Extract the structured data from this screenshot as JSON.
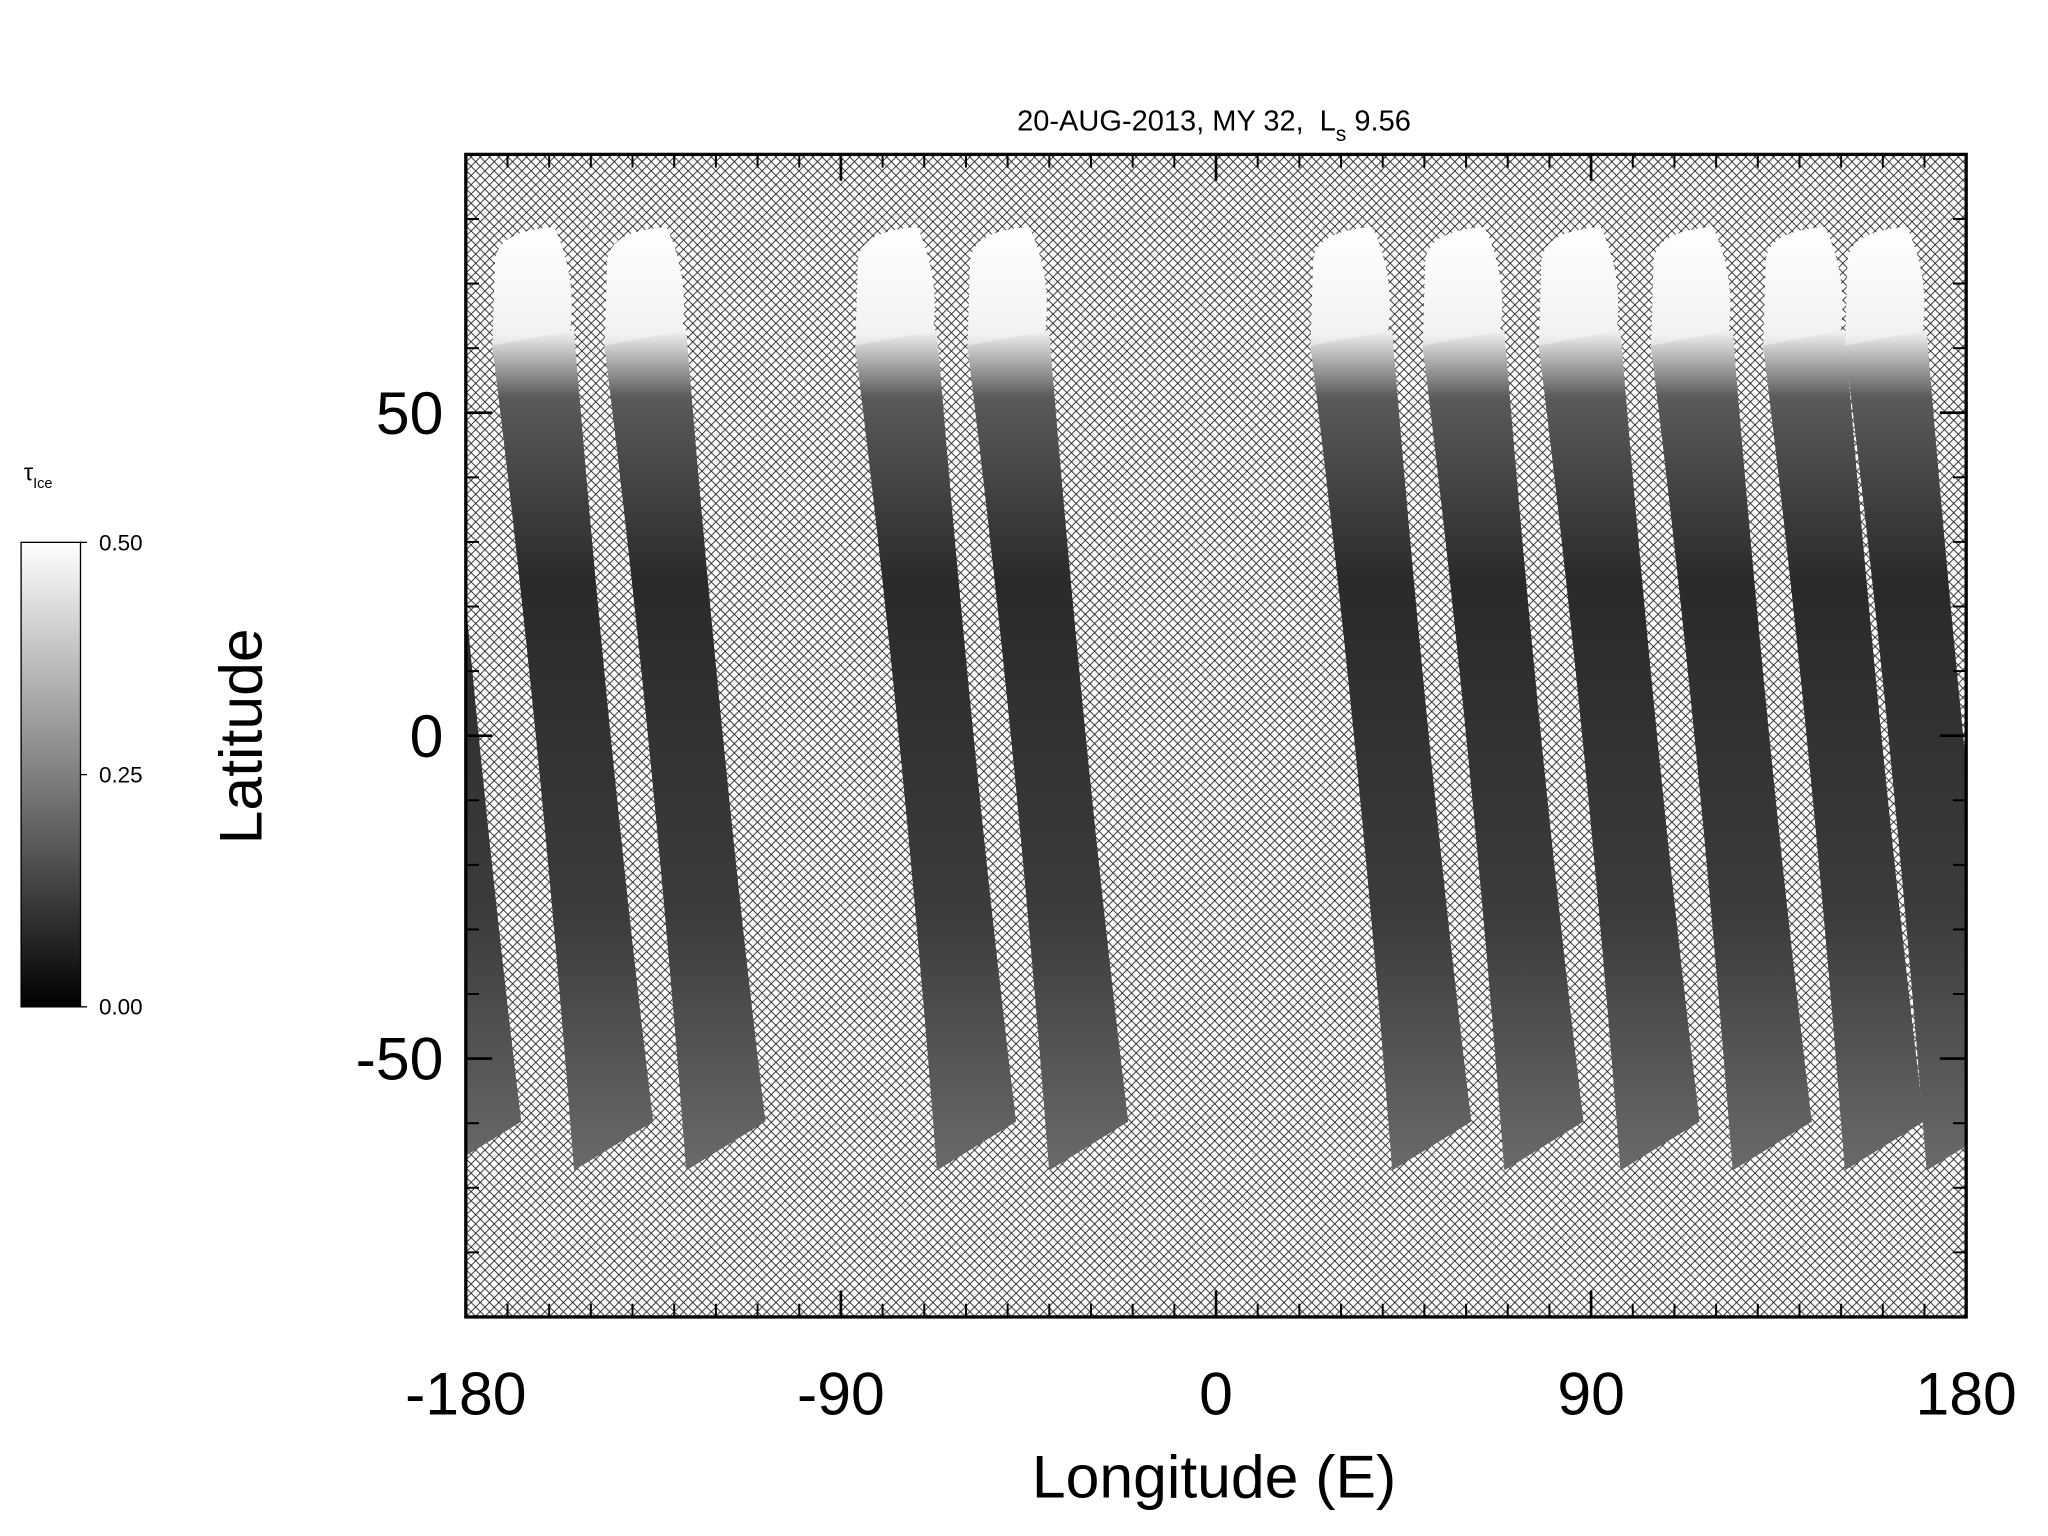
{
  "chart_data": {
    "type": "map",
    "title": {
      "prefix": "20-AUG-2013, MY 32,",
      "symbol": "L",
      "subscript": "s",
      "value": "9.56"
    },
    "xlabel": "Longitude (E)",
    "ylabel": "Latitude",
    "xlim": [
      -180,
      180
    ],
    "xticks": [
      -180,
      -90,
      0,
      90,
      180
    ],
    "xminorticks": [
      -170,
      -160,
      -150,
      -140,
      -130,
      -120,
      -110,
      -100,
      -80,
      -70,
      -60,
      -50,
      -40,
      -30,
      -20,
      -10,
      10,
      20,
      30,
      40,
      50,
      60,
      70,
      80,
      100,
      110,
      120,
      130,
      140,
      150,
      160,
      170
    ],
    "ylim": [
      -90,
      90
    ],
    "yticks": [
      -50,
      0,
      50
    ],
    "yminorticks": [
      -80,
      -70,
      -60,
      -40,
      -30,
      -20,
      -10,
      10,
      20,
      30,
      40,
      60,
      70,
      80
    ],
    "colorbar": {
      "label": {
        "symbol": "τ",
        "subscript": "Ice"
      },
      "lim": [
        0,
        0.5
      ],
      "ticks": [
        {
          "value": 0,
          "label": "0.00"
        },
        {
          "value": 0.25,
          "label": "0.25"
        },
        {
          "value": 0.5,
          "label": "0.50"
        }
      ],
      "colors": [
        "#000000",
        "#ffffff"
      ]
    }
  }
}
